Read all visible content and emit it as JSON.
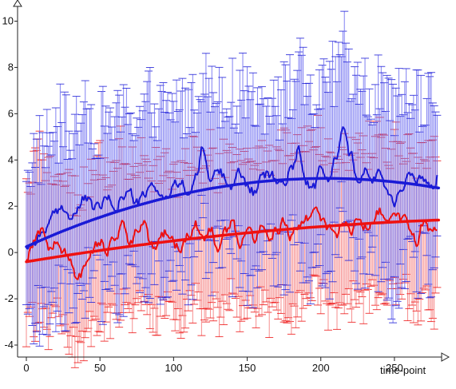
{
  "chart_data": {
    "type": "line",
    "title": "",
    "xlabel": "time-point",
    "ylabel": "",
    "xlim": [
      -5,
      282
    ],
    "ylim": [
      -5.3,
      10.8
    ],
    "x_ticks": [
      0,
      50,
      100,
      150,
      200,
      250
    ],
    "y_ticks": [
      -4,
      -2,
      0,
      2,
      4,
      6,
      8,
      10
    ],
    "grid": false,
    "legend": "none",
    "n_points": 280,
    "series": [
      {
        "color": "#1a1ad6",
        "errorbar_color": "#6b6bf0",
        "trend_color": "#1a1ad6",
        "trend_quadratic": [
          0.25,
          0.029,
          -7.12e-05
        ],
        "error_halfwidth_range": [
          2.0,
          5.2
        ],
        "keypoints": [
          [
            0,
            0.3
          ],
          [
            5,
            0.5
          ],
          [
            10,
            0.8
          ],
          [
            15,
            1.2
          ],
          [
            20,
            1.6
          ],
          [
            25,
            2.0
          ],
          [
            30,
            1.5
          ],
          [
            35,
            1.8
          ],
          [
            40,
            2.4
          ],
          [
            45,
            1.9
          ],
          [
            50,
            2.0
          ],
          [
            55,
            2.3
          ],
          [
            60,
            2.0
          ],
          [
            65,
            2.4
          ],
          [
            70,
            2.6
          ],
          [
            75,
            2.1
          ],
          [
            80,
            2.4
          ],
          [
            85,
            2.8
          ],
          [
            90,
            2.7
          ],
          [
            95,
            2.3
          ],
          [
            100,
            2.8
          ],
          [
            105,
            3.0
          ],
          [
            110,
            2.6
          ],
          [
            115,
            3.2
          ],
          [
            120,
            4.4
          ],
          [
            125,
            3.1
          ],
          [
            130,
            3.6
          ],
          [
            135,
            3.3
          ],
          [
            140,
            3.0
          ],
          [
            145,
            3.4
          ],
          [
            150,
            3.0
          ],
          [
            155,
            2.6
          ],
          [
            160,
            3.2
          ],
          [
            165,
            3.4
          ],
          [
            170,
            3.1
          ],
          [
            175,
            3.0
          ],
          [
            180,
            3.6
          ],
          [
            185,
            4.6
          ],
          [
            190,
            3.0
          ],
          [
            195,
            2.8
          ],
          [
            200,
            3.5
          ],
          [
            205,
            3.1
          ],
          [
            210,
            4.0
          ],
          [
            215,
            5.8
          ],
          [
            220,
            4.2
          ],
          [
            225,
            3.3
          ],
          [
            230,
            3.6
          ],
          [
            235,
            3.0
          ],
          [
            240,
            3.7
          ],
          [
            245,
            2.7
          ],
          [
            250,
            2.2
          ],
          [
            255,
            2.9
          ],
          [
            260,
            3.4
          ],
          [
            265,
            2.9
          ],
          [
            270,
            3.2
          ],
          [
            275,
            2.8
          ],
          [
            280,
            3.4
          ]
        ]
      },
      {
        "color": "#ee1111",
        "errorbar_color": "#f57a7a",
        "trend_color": "#ee1111",
        "trend_quadratic": [
          -0.4,
          0.0105,
          -1.45e-05
        ],
        "error_halfwidth_range": [
          2.4,
          4.2
        ],
        "keypoints": [
          [
            0,
            -0.2
          ],
          [
            5,
            0.5
          ],
          [
            10,
            1.0
          ],
          [
            15,
            0.2
          ],
          [
            20,
            0.4
          ],
          [
            25,
            0.0
          ],
          [
            30,
            -0.4
          ],
          [
            35,
            -1.2
          ],
          [
            40,
            -0.6
          ],
          [
            45,
            0.2
          ],
          [
            50,
            0.5
          ],
          [
            55,
            0.2
          ],
          [
            60,
            0.6
          ],
          [
            65,
            1.2
          ],
          [
            70,
            0.3
          ],
          [
            75,
            0.8
          ],
          [
            80,
            1.1
          ],
          [
            85,
            0.2
          ],
          [
            90,
            0.5
          ],
          [
            95,
            0.9
          ],
          [
            100,
            0.4
          ],
          [
            105,
            0.0
          ],
          [
            110,
            0.8
          ],
          [
            115,
            1.2
          ],
          [
            120,
            0.4
          ],
          [
            125,
            1.0
          ],
          [
            130,
            0.3
          ],
          [
            135,
            0.8
          ],
          [
            140,
            1.3
          ],
          [
            145,
            0.5
          ],
          [
            150,
            0.9
          ],
          [
            155,
            0.6
          ],
          [
            160,
            1.2
          ],
          [
            165,
            0.7
          ],
          [
            170,
            1.0
          ],
          [
            175,
            1.3
          ],
          [
            180,
            0.7
          ],
          [
            185,
            1.1
          ],
          [
            190,
            1.4
          ],
          [
            195,
            1.9
          ],
          [
            200,
            1.5
          ],
          [
            205,
            1.0
          ],
          [
            210,
            0.6
          ],
          [
            215,
            1.2
          ],
          [
            220,
            1.0
          ],
          [
            225,
            1.4
          ],
          [
            230,
            1.1
          ],
          [
            235,
            1.5
          ],
          [
            240,
            1.8
          ],
          [
            245,
            1.0
          ],
          [
            250,
            1.9
          ],
          [
            255,
            1.5
          ],
          [
            260,
            1.2
          ],
          [
            265,
            0.5
          ],
          [
            270,
            1.4
          ],
          [
            275,
            1.0
          ],
          [
            280,
            1.2
          ]
        ]
      }
    ]
  }
}
